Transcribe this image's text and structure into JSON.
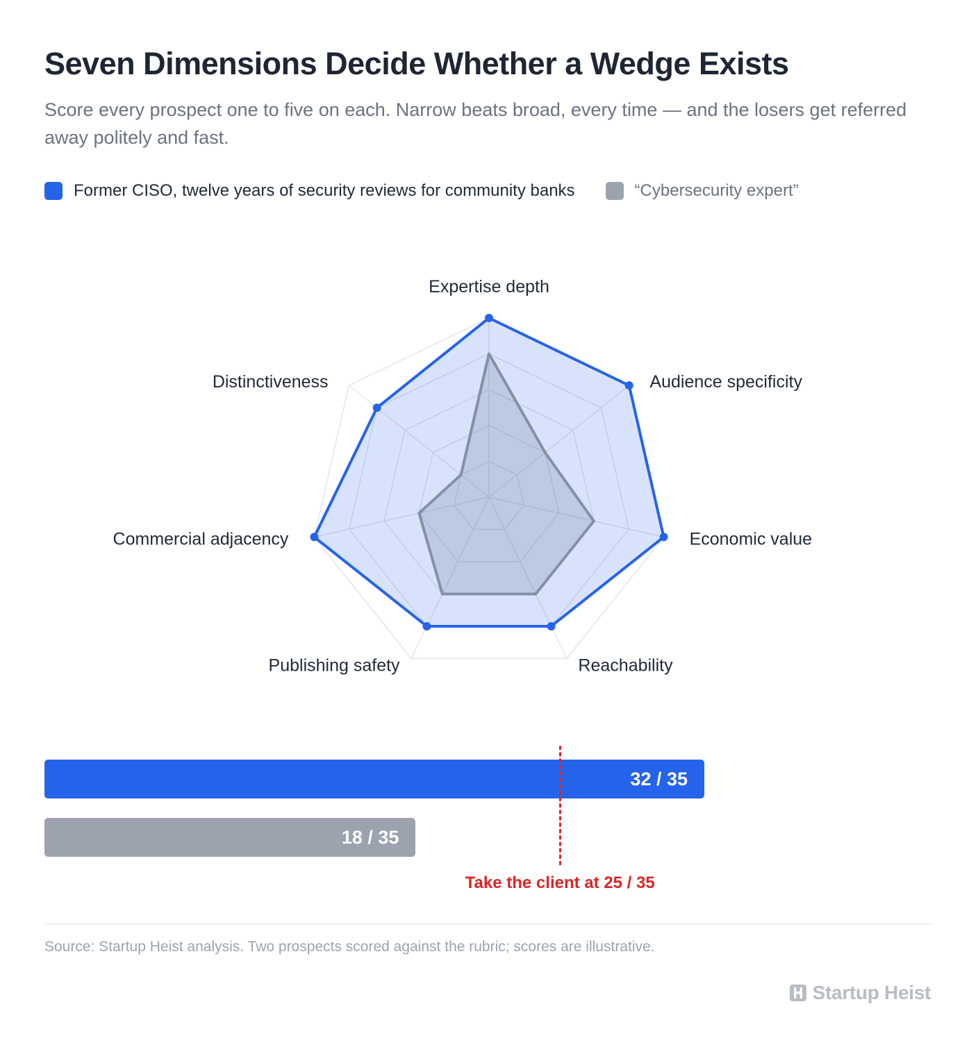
{
  "header": {
    "title": "Seven Dimensions Decide Whether a Wedge Exists",
    "subtitle": "Score every prospect one to five on each. Narrow beats broad, every time — and the losers get referred away politely and fast."
  },
  "legend": [
    {
      "label": "Former CISO, twelve years of security reviews for community banks",
      "color": "#2563eb"
    },
    {
      "label": "“Cybersecurity expert”",
      "color": "#9ca3af"
    }
  ],
  "chart_data": [
    {
      "type": "radar",
      "axes": [
        "Expertise depth",
        "Audience specificity",
        "Economic value",
        "Reachability",
        "Publishing safety",
        "Commercial adjacency",
        "Distinctiveness"
      ],
      "rlim": [
        0,
        5
      ],
      "grid": true,
      "series": [
        {
          "name": "Former CISO, twelve years of security reviews for community banks",
          "color": "#2563eb",
          "values": [
            5,
            5,
            5,
            4,
            4,
            5,
            4
          ]
        },
        {
          "name": "“Cybersecurity expert”",
          "color": "#8390a8",
          "values": [
            4,
            2,
            3,
            3,
            3,
            2,
            1
          ]
        }
      ]
    },
    {
      "type": "bar",
      "orientation": "horizontal",
      "xlim": [
        0,
        47
      ],
      "bars": [
        {
          "value": 32,
          "max": 35,
          "label": "32 / 35",
          "color": "#2563eb"
        },
        {
          "value": 18,
          "max": 35,
          "label": "18 / 35",
          "color": "#9ca3af"
        }
      ],
      "threshold": {
        "value": 25,
        "label": "Take the client at 25 / 35",
        "color": "#dc2626"
      }
    }
  ],
  "footer": {
    "source": "Source: Startup Heist analysis. Two prospects scored against the rubric; scores are illustrative.",
    "brand": "Startup Heist",
    "brand_icon": "h-logo-icon"
  }
}
